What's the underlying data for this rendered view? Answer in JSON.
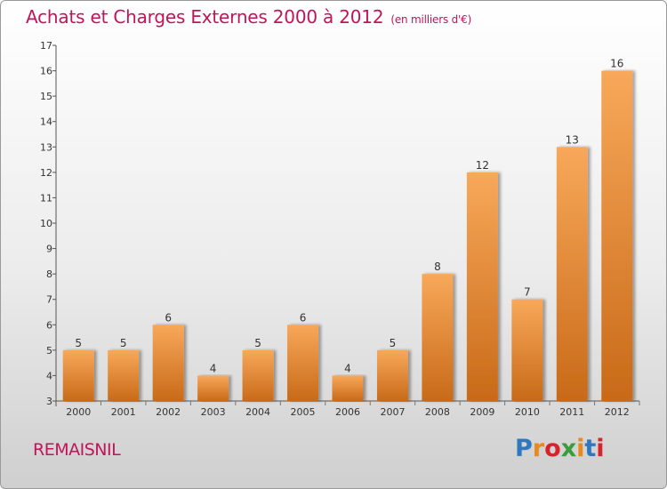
{
  "header": {
    "title": "Achats et Charges Externes 2000 à 2012",
    "subtitle": "(en milliers d'€)"
  },
  "footer": {
    "commune": "REMAISNIL",
    "brand_letters": [
      "P",
      "r",
      "o",
      "x",
      "i",
      "t",
      "i"
    ],
    "brand_colors": [
      "#2f78c0",
      "#e8891e",
      "#d6242a",
      "#3a9c3a",
      "#e8891e",
      "#2f78c0",
      "#d6242a"
    ]
  },
  "chart_data": {
    "type": "bar",
    "categories": [
      "2000",
      "2001",
      "2002",
      "2003",
      "2004",
      "2005",
      "2006",
      "2007",
      "2008",
      "2009",
      "2010",
      "2011",
      "2012"
    ],
    "values": [
      5,
      5,
      6,
      4,
      5,
      6,
      4,
      5,
      8,
      12,
      7,
      13,
      16
    ],
    "data_labels": [
      "5",
      "5",
      "6",
      "4",
      "5",
      "6",
      "4",
      "5",
      "8",
      "12",
      "7",
      "13",
      "16"
    ],
    "yticks": [
      "3",
      "4",
      "5",
      "6",
      "7",
      "8",
      "9",
      "10",
      "11",
      "12",
      "13",
      "14",
      "15",
      "16",
      "17"
    ],
    "ylim": [
      3,
      17
    ],
    "grid": false,
    "bar_color_top": "#f8a85a",
    "bar_color_bottom": "#c86a18"
  }
}
